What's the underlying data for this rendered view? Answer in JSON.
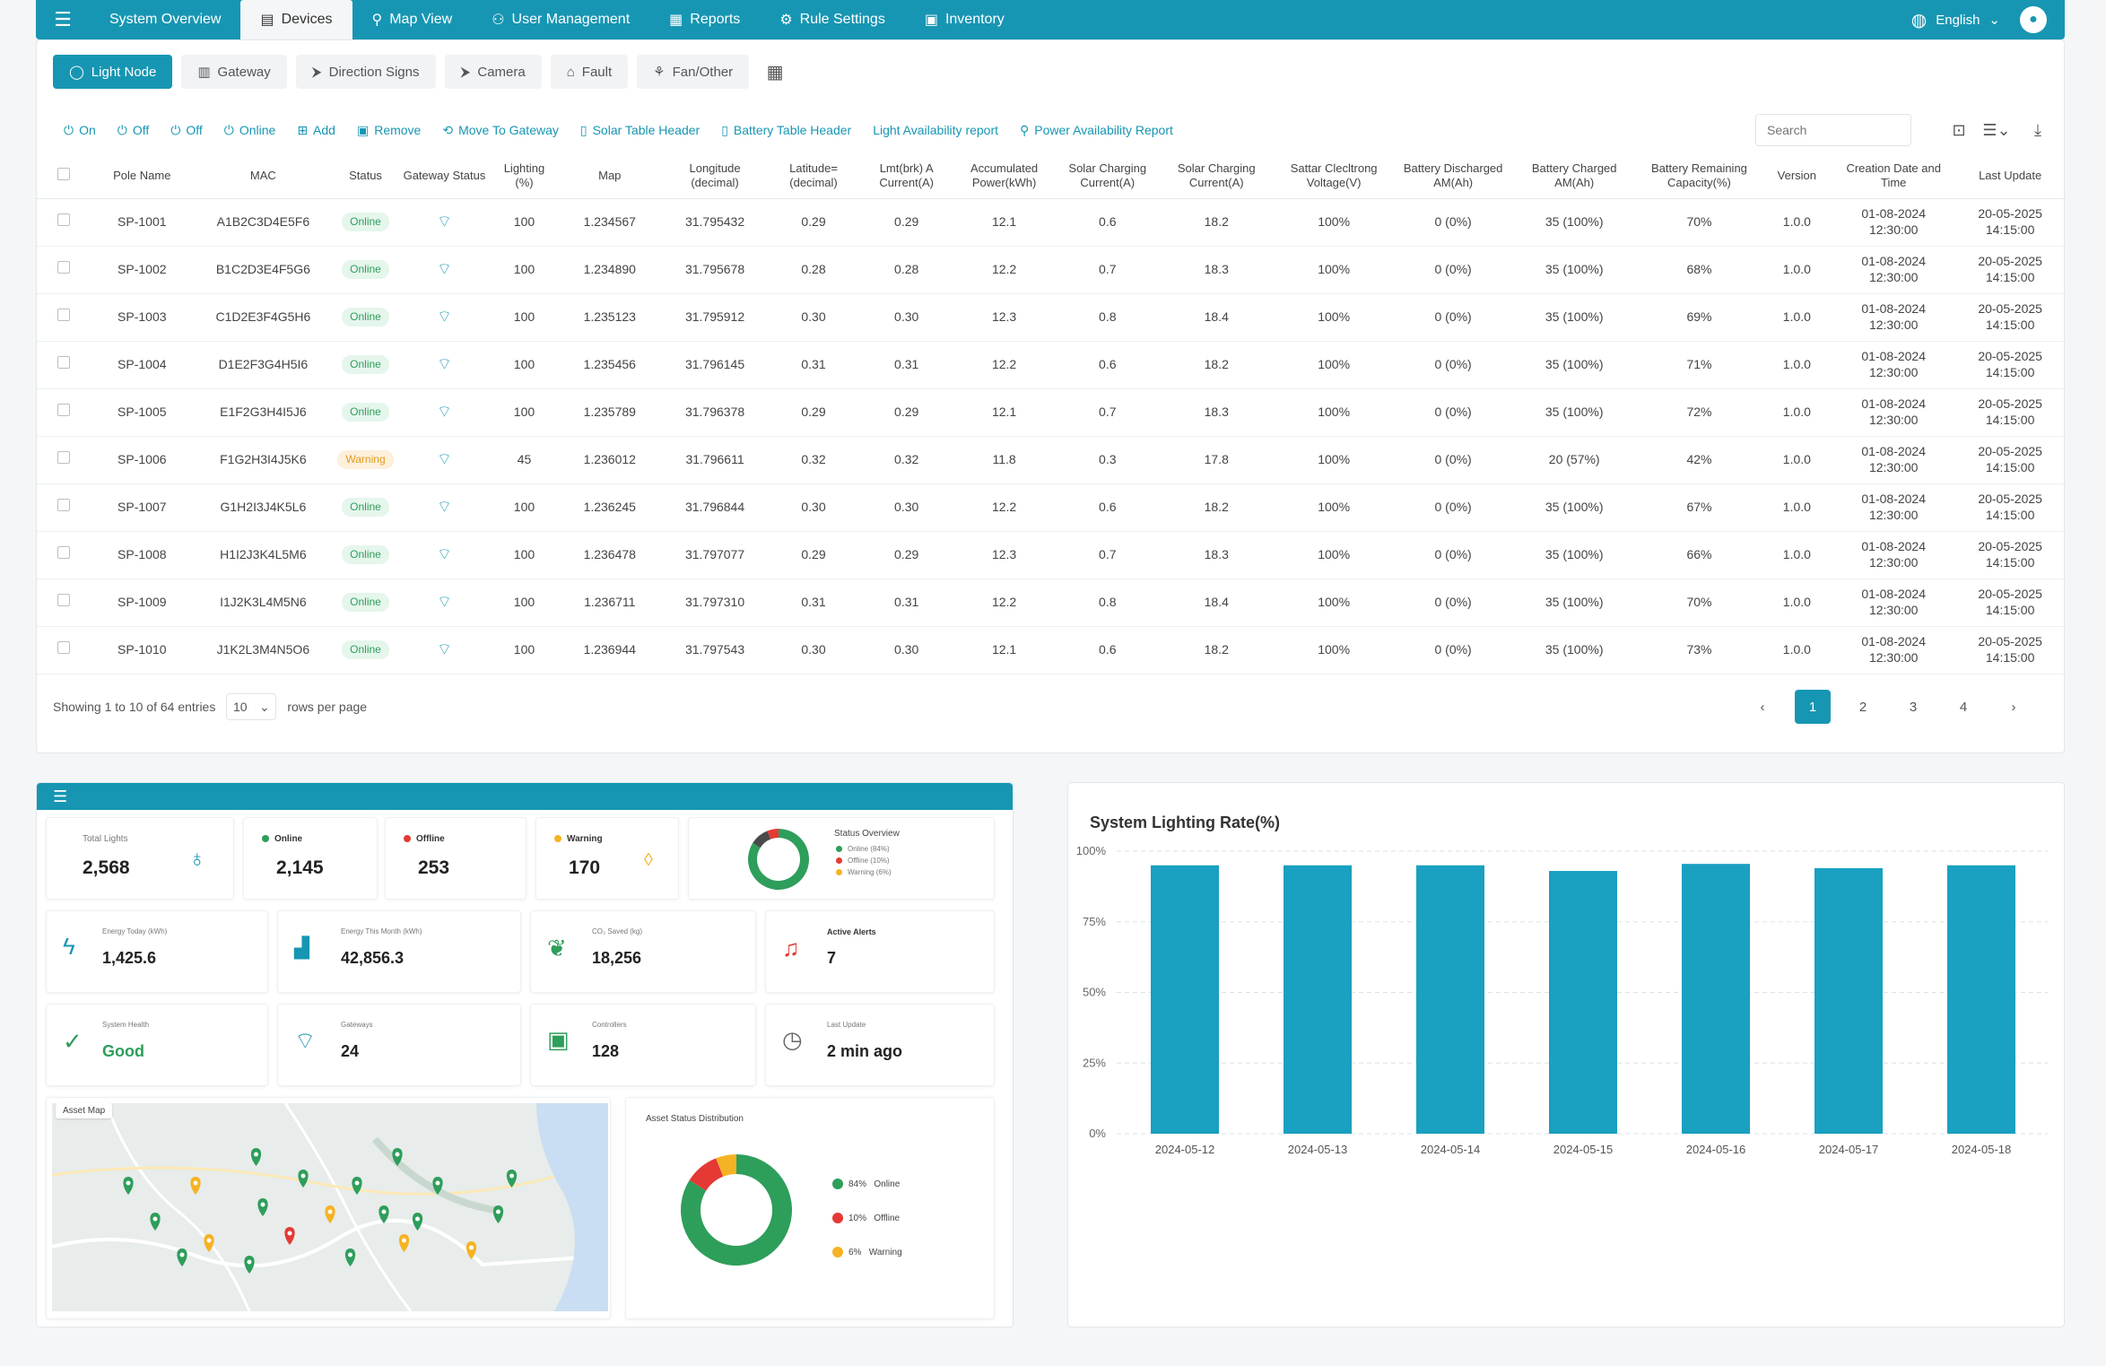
{
  "nav": {
    "items": [
      {
        "label": "System Overview",
        "icon": "home-icon"
      },
      {
        "label": "Devices",
        "icon": "devices-icon",
        "active": true
      },
      {
        "label": "Map View",
        "icon": "map-pin-icon"
      },
      {
        "label": "User Management",
        "icon": "users-icon"
      },
      {
        "label": "Reports",
        "icon": "reports-icon"
      },
      {
        "label": "Rule Settings",
        "icon": "rules-icon"
      },
      {
        "label": "Inventory",
        "icon": "inventory-icon"
      }
    ],
    "language": "English"
  },
  "categories": [
    {
      "label": "Light Node",
      "active": true
    },
    {
      "label": "Gateway"
    },
    {
      "label": "Direction Signs"
    },
    {
      "label": "Camera"
    },
    {
      "label": "Fault"
    },
    {
      "label": "Fan/Other"
    }
  ],
  "actions": [
    {
      "label": "On",
      "icon": "power-icon"
    },
    {
      "label": "Off",
      "icon": "power-off-icon"
    },
    {
      "label": "Off",
      "icon": "power-off-icon"
    },
    {
      "label": "Online",
      "icon": "online-icon"
    },
    {
      "label": "Add",
      "icon": "add-icon"
    },
    {
      "label": "Remove",
      "icon": "remove-icon"
    },
    {
      "label": "Move To Gateway",
      "icon": "move-icon"
    },
    {
      "label": "Solar Table Header",
      "icon": "solar-icon"
    },
    {
      "label": "Battery Table Header",
      "icon": "battery-icon"
    },
    {
      "label": "Light Availability report",
      "icon": ""
    },
    {
      "label": "Power Availability Report",
      "icon": "report-icon"
    }
  ],
  "search": {
    "placeholder": "Search"
  },
  "table": {
    "headers": [
      "Pole Name",
      "MAC",
      "Status",
      "Gateway Status",
      "Lighting (%)",
      "Map",
      "Longitude (decimal)",
      "Latitude= (decimal)",
      "Lmt(brk) A Current(A)",
      "Accumulated Power(kWh)",
      "Solar Charging Current(A)",
      "Solar Charging Current(A)",
      "Sattar Clecltrong Voltage(V)",
      "Battery Discharged AM(Ah)",
      "Battery Charged AM(Ah)",
      "Battery Remaining Capacity(%)",
      "Version",
      "Creation Date and Time",
      "Last Update"
    ],
    "rows": [
      [
        "SP-1001",
        "A1B2C3D4E5F6",
        "Online",
        "100",
        "1.234567",
        "31.795432",
        "0.29",
        "0.29",
        "12.1",
        "0.6",
        "18.2",
        "100%",
        "0 (0%)",
        "35 (100%)",
        "70%",
        "1.0.0",
        "01-08-2024",
        "12:30:00",
        "20-05-2025",
        "14:15:00"
      ],
      [
        "SP-1002",
        "B1C2D3E4F5G6",
        "Online",
        "100",
        "1.234890",
        "31.795678",
        "0.28",
        "0.28",
        "12.2",
        "0.7",
        "18.3",
        "100%",
        "0 (0%)",
        "35 (100%)",
        "68%",
        "1.0.0",
        "01-08-2024",
        "12:30:00",
        "20-05-2025",
        "14:15:00"
      ],
      [
        "SP-1003",
        "C1D2E3F4G5H6",
        "Online",
        "100",
        "1.235123",
        "31.795912",
        "0.30",
        "0.30",
        "12.3",
        "0.8",
        "18.4",
        "100%",
        "0 (0%)",
        "35 (100%)",
        "69%",
        "1.0.0",
        "01-08-2024",
        "12:30:00",
        "20-05-2025",
        "14:15:00"
      ],
      [
        "SP-1004",
        "D1E2F3G4H5I6",
        "Online",
        "100",
        "1.235456",
        "31.796145",
        "0.31",
        "0.31",
        "12.2",
        "0.6",
        "18.2",
        "100%",
        "0 (0%)",
        "35 (100%)",
        "71%",
        "1.0.0",
        "01-08-2024",
        "12:30:00",
        "20-05-2025",
        "14:15:00"
      ],
      [
        "SP-1005",
        "E1F2G3H4I5J6",
        "Online",
        "100",
        "1.235789",
        "31.796378",
        "0.29",
        "0.29",
        "12.1",
        "0.7",
        "18.3",
        "100%",
        "0 (0%)",
        "35 (100%)",
        "72%",
        "1.0.0",
        "01-08-2024",
        "12:30:00",
        "20-05-2025",
        "14:15:00"
      ],
      [
        "SP-1006",
        "F1G2H3I4J5K6",
        "Warning",
        "45",
        "1.236012",
        "31.796611",
        "0.32",
        "0.32",
        "11.8",
        "0.3",
        "17.8",
        "100%",
        "0 (0%)",
        "20 (57%)",
        "42%",
        "1.0.0",
        "01-08-2024",
        "12:30:00",
        "20-05-2025",
        "14:15:00"
      ],
      [
        "SP-1007",
        "G1H2I3J4K5L6",
        "Online",
        "100",
        "1.236245",
        "31.796844",
        "0.30",
        "0.30",
        "12.2",
        "0.6",
        "18.2",
        "100%",
        "0 (0%)",
        "35 (100%)",
        "67%",
        "1.0.0",
        "01-08-2024",
        "12:30:00",
        "20-05-2025",
        "14:15:00"
      ],
      [
        "SP-1008",
        "H1I2J3K4L5M6",
        "Online",
        "100",
        "1.236478",
        "31.797077",
        "0.29",
        "0.29",
        "12.3",
        "0.7",
        "18.3",
        "100%",
        "0 (0%)",
        "35 (100%)",
        "66%",
        "1.0.0",
        "01-08-2024",
        "12:30:00",
        "20-05-2025",
        "14:15:00"
      ],
      [
        "SP-1009",
        "I1J2K3L4M5N6",
        "Online",
        "100",
        "1.236711",
        "31.797310",
        "0.31",
        "0.31",
        "12.2",
        "0.8",
        "18.4",
        "100%",
        "0 (0%)",
        "35 (100%)",
        "70%",
        "1.0.0",
        "01-08-2024",
        "12:30:00",
        "20-05-2025",
        "14:15:00"
      ],
      [
        "SP-1010",
        "J1K2L3M4N5O6",
        "Online",
        "100",
        "1.236944",
        "31.797543",
        "0.30",
        "0.30",
        "12.1",
        "0.6",
        "18.2",
        "100%",
        "0 (0%)",
        "35 (100%)",
        "73%",
        "1.0.0",
        "01-08-2024",
        "12:30:00",
        "20-05-2025",
        "14:15:00"
      ]
    ]
  },
  "pagination": {
    "showing": "Showing 1 to 10 of 64 entries",
    "rows_value": "10",
    "rows_label": "rows per page",
    "pages": [
      "1",
      "2",
      "3",
      "4"
    ],
    "active_page": "1"
  },
  "dashboard": {
    "total_lights": {
      "label": "Total Lights",
      "value": "2,568"
    },
    "online": {
      "label": "Online",
      "value": "2,145"
    },
    "offline": {
      "label": "Offline",
      "value": "253"
    },
    "warning": {
      "label": "Warning",
      "value": "170"
    },
    "status_overview": {
      "title": "Status Overview",
      "items": [
        "Online (84%)",
        "Offline (10%)",
        "Warning (6%)"
      ],
      "values": [
        84,
        10,
        6
      ]
    },
    "energy_today": {
      "label": "Energy Today (kWh)",
      "value": "1,425.6"
    },
    "energy_month": {
      "label": "Energy This Month (kWh)",
      "value": "42,856.3"
    },
    "co2": {
      "label": "CO₂ Saved (kg)",
      "value": "18,256"
    },
    "alerts": {
      "label": "Active Alerts",
      "value": "7"
    },
    "health": {
      "label": "System Health",
      "value": "Good"
    },
    "gateways": {
      "label": "Gateways",
      "value": "24"
    },
    "controllers": {
      "label": "Controllers",
      "value": "128"
    },
    "last_update": {
      "label": "Last Update",
      "value": "2 min ago"
    },
    "asset_map": {
      "label": "Asset Map"
    },
    "asset_dist": {
      "title": "Asset Status Distribution",
      "items": [
        {
          "pct": "84%",
          "name": "Online"
        },
        {
          "pct": "10%",
          "name": "Offline"
        },
        {
          "pct": "6%",
          "name": "Warning"
        }
      ],
      "values": [
        84,
        10,
        6
      ]
    }
  },
  "colors": {
    "primary": "#1796b3",
    "online": "#2e9e5b",
    "offline": "#e53935",
    "warning": "#f5b324",
    "bar": "#1aa0c0"
  },
  "chart_data": {
    "type": "bar",
    "title": "System Lighting Rate(%)",
    "categories": [
      "2024-05-12",
      "2024-05-13",
      "2024-05-14",
      "2024-05-15",
      "2024-05-16",
      "2024-05-17",
      "2024-05-18"
    ],
    "values": [
      95,
      95,
      95,
      93,
      95.5,
      94,
      95
    ],
    "ylim": [
      0,
      100
    ],
    "yticks": [
      "0%",
      "25%",
      "50%",
      "75%",
      "100%"
    ],
    "grid": true
  }
}
